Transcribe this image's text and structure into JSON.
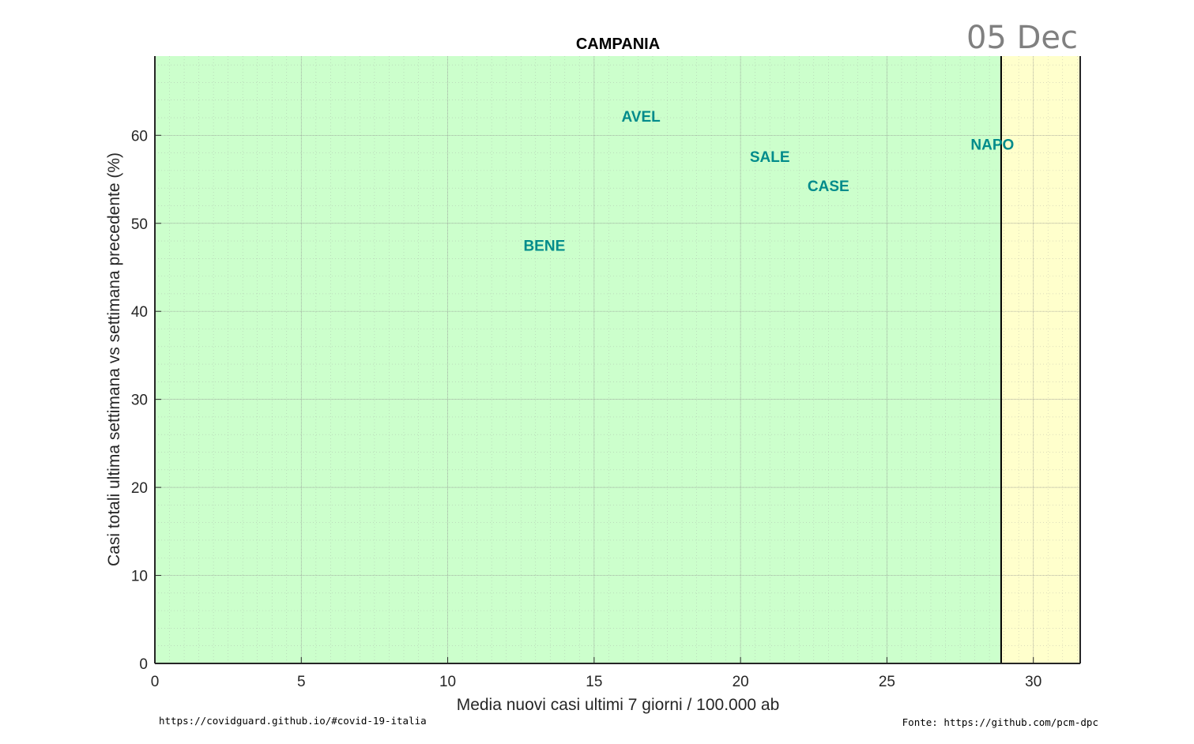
{
  "header": {
    "date_label": "05 Dec"
  },
  "footer": {
    "left_source": "https://covidguard.github.io/#covid-19-italia",
    "right_source": "Fonte: https://github.com/pcm-dpc"
  },
  "chart_data": {
    "type": "scatter",
    "title": "CAMPANIA",
    "xlabel": "Media nuovi casi ultimi 7 giorni / 100.000 ab",
    "ylabel": "Casi totali ultima settimana vs settimana precedente (%)",
    "xlim": [
      0,
      31.6
    ],
    "ylim": [
      0,
      69
    ],
    "xticks": [
      0,
      5,
      10,
      15,
      20,
      25,
      30
    ],
    "yticks": [
      0,
      10,
      20,
      30,
      40,
      50,
      60
    ],
    "grid": true,
    "minor_grid": true,
    "threshold_x": 28.9,
    "zones": [
      {
        "from": 0,
        "to": 28.9,
        "color": "#ccffcc"
      },
      {
        "from": 28.9,
        "to": 31.6,
        "color": "#ffffcc"
      }
    ],
    "label_color": "#008b8b",
    "points": [
      {
        "label": "AVEL",
        "x": 16.6,
        "y": 62.2
      },
      {
        "label": "SALE",
        "x": 21.0,
        "y": 57.6
      },
      {
        "label": "CASE",
        "x": 23.0,
        "y": 54.3
      },
      {
        "label": "NAPO",
        "x": 28.6,
        "y": 59.0
      },
      {
        "label": "BENE",
        "x": 13.3,
        "y": 47.5
      }
    ]
  }
}
